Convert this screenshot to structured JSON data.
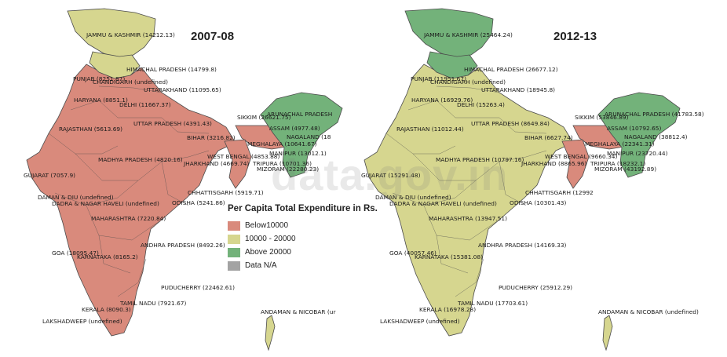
{
  "colors": {
    "below_10000": "#d98a7c",
    "range_10000_20000": "#d6d68f",
    "above_20000": "#73b27a",
    "data_na": "#a3a3a3",
    "border": "#4b4b4b"
  },
  "legend": {
    "title": "Per Capita Total Expenditure in Rs.",
    "items": [
      {
        "label": "Below10000",
        "color_key": "below_10000"
      },
      {
        "label": "10000 - 20000",
        "color_key": "range_10000_20000"
      },
      {
        "label": "Above 20000",
        "color_key": "above_20000"
      },
      {
        "label": "Data N/A",
        "color_key": "data_na"
      }
    ]
  },
  "watermark": "data.gov.in",
  "maps": [
    {
      "title": "2007-08",
      "regions": {
        "north": "range_10000_20000",
        "himachal": "range_10000_20000",
        "mainland": "below_10000",
        "ne_green": "above_20000",
        "ne_red": "below_10000",
        "bengal": "below_10000",
        "andaman": "range_10000_20000"
      },
      "labels": [
        "JAMMU & KASHMIR (14212.13)",
        "HIMACHAL PRADESH (14799.8)",
        "PUNJAB (8251.87)",
        "CHANDIGARH (undefined)",
        "UTTARAKHAND (11095.65)",
        "HARYANA (8851.1)",
        "DELHI (11667.37)",
        "RAJASTHAN (5613.69)",
        "UTTAR PRADESH (4391.43)",
        "SIKKIM (26621.75)",
        "ARUNACHAL PRADESH",
        "ASSAM (4977.48)",
        "NAGALAND (18",
        "BIHAR (3216.82)",
        "MEGHALAYA (10641.67)",
        "MANIPUR (13012.1)",
        "WEST BENGAL (4853.88)",
        "TRIPURA (10701.36)",
        "JHARKHAND (4669.74)",
        "MIZORAM (22280.23)",
        "MADHYA PRADESH (4820.16)",
        "GUJARAT (7057.9)",
        "CHHATTISGARH (5919.71)",
        "DAMAN & DIU (undefined)",
        "DADRA & NAGAR HAVELI (undefined)",
        "ODISHA (5241.86)",
        "MAHARASHTRA (7220.84)",
        "ANDHRA PRADESH (8492.26)",
        "GOA (18095.47)",
        "KARNATAKA (8165.2)",
        "PUDUCHERRY (22462.61)",
        "TAMIL NADU (7921.67)",
        "KERALA (8090.3)",
        "LAKSHADWEEP (undefined)",
        "ANDAMAN & NICOBAR (ur"
      ]
    },
    {
      "title": "2012-13",
      "regions": {
        "north": "above_20000",
        "himachal": "above_20000",
        "mainland": "range_10000_20000",
        "ne_green": "above_20000",
        "ne_red": "below_10000",
        "bengal": "below_10000",
        "andaman": "range_10000_20000"
      },
      "labels": [
        "JAMMU & KASHMIR (25464.24)",
        "HIMACHAL PRADESH (26677.12)",
        "PUNJAB (11951.67)",
        "CHANDIGARH (undefined)",
        "UTTARAKHAND (18945.8)",
        "HARYANA (16929.76)",
        "DELHI (15263.4)",
        "RAJASTHAN (11012.44)",
        "UTTAR PRADESH (8649.84)",
        "SIKKIM (53846.89)",
        "ARUNACHAL PRADESH (41783.58)",
        "ASSAM (10792.65)",
        "NAGALAND (38812.4)",
        "BIHAR (6627.74)",
        "MEGHALAYA (22341.31)",
        "MANIPUR (23720.44)",
        "WEST BENGAL (9660.34)",
        "TRIPURA (18232.1)",
        "JHARKHAND (8865.96)",
        "MIZORAM (43192.89)",
        "MADHYA PRADESH (10797.16)",
        "GUJARAT (15291.48)",
        "CHHATTISGARH (12992",
        "DAMAN & DIU (undefined)",
        "DADRA & NAGAR HAVELI (undefined)",
        "ODISHA (10301.43)",
        "MAHARASHTRA (13947.51)",
        "ANDHRA PRADESH (14169.33)",
        "GOA (40057.46)",
        "KARNATAKA (15381.08)",
        "PUDUCHERRY (25912.29)",
        "TAMIL NADU (17703.61)",
        "KERALA (16978.28)",
        "LAKSHADWEEP (undefined)",
        "ANDAMAN & NICOBAR (undefined)"
      ]
    }
  ]
}
